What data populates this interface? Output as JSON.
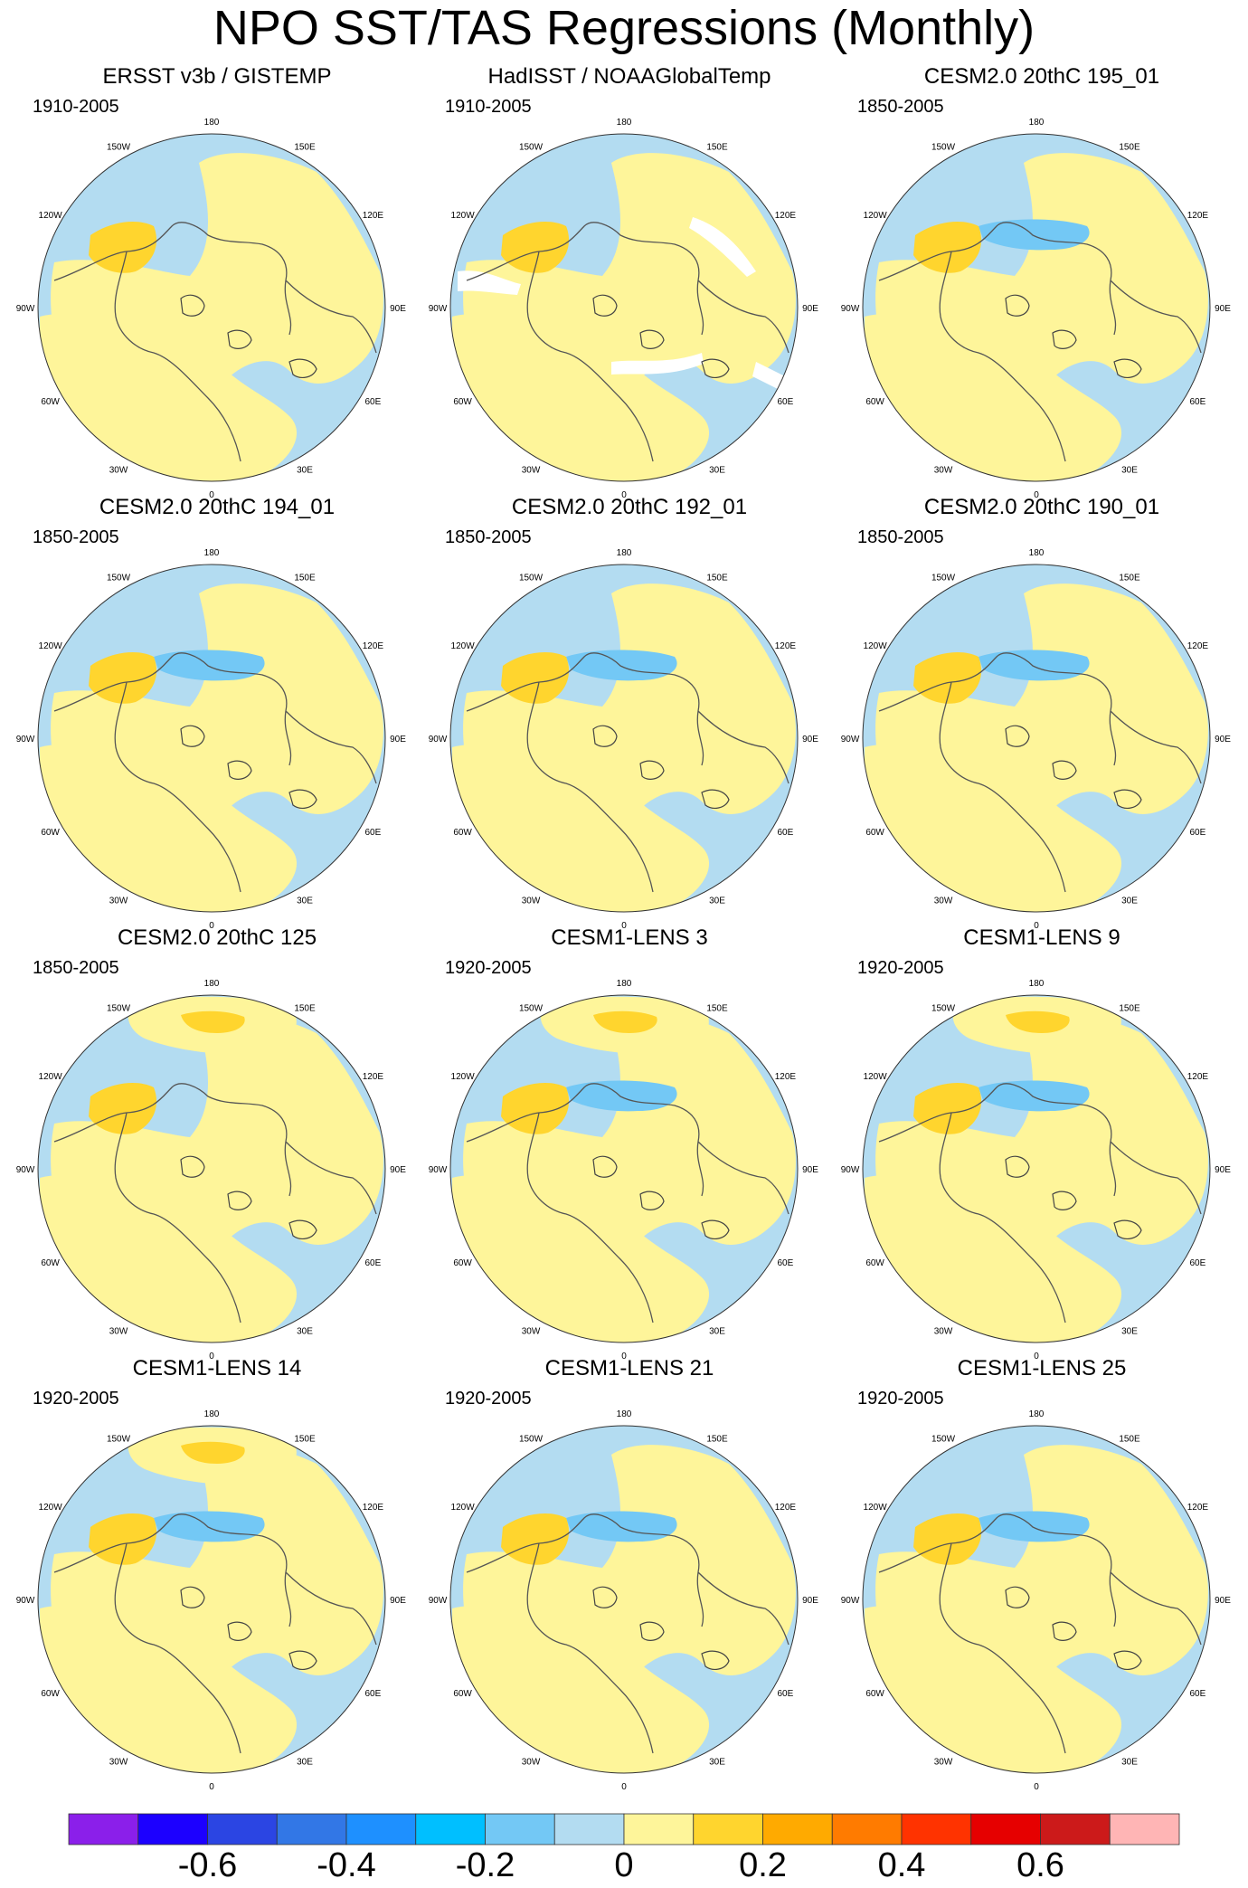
{
  "title": "NPO SST/TAS Regressions (Monthly)",
  "longitude_labels": [
    "180",
    "150E",
    "120E",
    "90E",
    "60E",
    "30E",
    "0",
    "30W",
    "60W",
    "90W",
    "120W",
    "150W"
  ],
  "colors": {
    "-0.6": "#8b1fea",
    "-0.5": "#1c00ff",
    "-0.4": "#2b45e3",
    "-0.3": "#3277e6",
    "-0.2": "#1e90ff",
    "-0.1": "#00bfff",
    "-0.05": "#73c8f5",
    "0-": "#b3dcf1",
    "0+": "#fef59a",
    "0.05": "#ffd52e",
    "0.1": "#ffaa00",
    "0.2": "#ff7b00",
    "0.3": "#ff3300",
    "0.4": "#e60000",
    "0.5": "#cc1a1a",
    "0.6": "#ffb5b5",
    "missing": "#ffffff",
    "coast": "#555555",
    "dark_land": "#444444"
  },
  "panels": [
    {
      "title": "ERSST v3b / GISTEMP",
      "period": "1910-2005"
    },
    {
      "title": "HadISST / NOAAGlobalTemp",
      "period": "1910-2005"
    },
    {
      "title": "CESM2.0 20thC 195_01",
      "period": "1850-2005"
    },
    {
      "title": "CESM2.0 20thC 194_01",
      "period": "1850-2005"
    },
    {
      "title": "CESM2.0 20thC 192_01",
      "period": "1850-2005"
    },
    {
      "title": "CESM2.0 20thC 190_01",
      "period": "1850-2005"
    },
    {
      "title": "CESM2.0 20thC 125",
      "period": "1850-2005"
    },
    {
      "title": "CESM1-LENS 3",
      "period": "1920-2005"
    },
    {
      "title": "CESM1-LENS 9",
      "period": "1920-2005"
    },
    {
      "title": "CESM1-LENS 14",
      "period": "1920-2005"
    },
    {
      "title": "CESM1-LENS 21",
      "period": "1920-2005"
    },
    {
      "title": "CESM1-LENS 25",
      "period": "1920-2005"
    }
  ],
  "colorbar": {
    "colors": [
      "#8b1fea",
      "#1c00ff",
      "#2b45e3",
      "#3277e6",
      "#1e90ff",
      "#00bfff",
      "#73c8f5",
      "#b3dcf1",
      "#fef59a",
      "#ffd52e",
      "#ffaa00",
      "#ff7b00",
      "#ff3300",
      "#e60000",
      "#cc1a1a",
      "#ffb5b5"
    ],
    "labels": [
      {
        "text": "-0.6",
        "boundary": 2
      },
      {
        "text": "-0.4",
        "boundary": 4
      },
      {
        "text": "-0.2",
        "boundary": 6
      },
      {
        "text": "0",
        "boundary": 8
      },
      {
        "text": "0.2",
        "boundary": 10
      },
      {
        "text": "0.4",
        "boundary": 12
      },
      {
        "text": "0.6",
        "boundary": 14
      }
    ]
  }
}
